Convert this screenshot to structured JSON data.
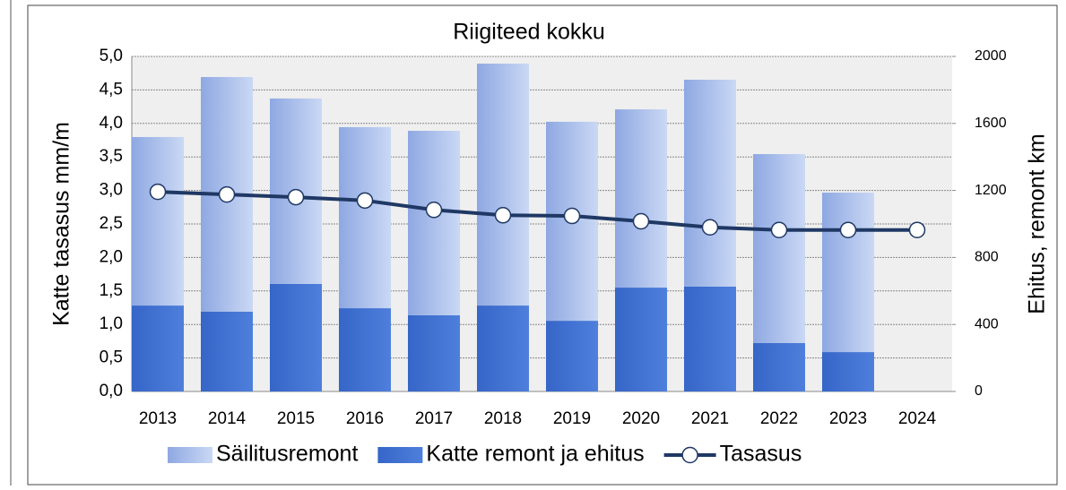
{
  "chart_data": {
    "type": "bar",
    "title": "Riigiteed kokku",
    "ylabel": "Katte tasasus mm/m",
    "y2label": "Ehitus, remont km",
    "categories": [
      "2013",
      "2014",
      "2015",
      "2016",
      "2017",
      "2018",
      "2019",
      "2020",
      "2021",
      "2022",
      "2023",
      "2024"
    ],
    "stacked": true,
    "series": [
      {
        "name": "Säilitusremont",
        "type": "bar",
        "axis": "y2",
        "color": "#a9bfea",
        "values": [
          1006,
          1401,
          1107,
          1081,
          1101,
          1444,
          1188,
          1064,
          1235,
          1128,
          952,
          null
        ]
      },
      {
        "name": "Katte remont ja ehitus",
        "type": "bar",
        "axis": "y2",
        "color": "#3f6fd1",
        "values": [
          513,
          476,
          642,
          497,
          455,
          513,
          422,
          620,
          626,
          289,
          235,
          null
        ]
      },
      {
        "name": "Tasasus",
        "type": "line",
        "axis": "y",
        "color": "#1f3864",
        "values": [
          2.98,
          2.94,
          2.9,
          2.85,
          2.71,
          2.63,
          2.62,
          2.54,
          2.45,
          2.41,
          2.41,
          2.41
        ]
      }
    ],
    "ylim": [
      0,
      5
    ],
    "yticks": [
      {
        "value": 0,
        "label": "0,0"
      },
      {
        "value": 0.5,
        "label": "0,5"
      },
      {
        "value": 1,
        "label": "1,0"
      },
      {
        "value": 1.5,
        "label": "1,5"
      },
      {
        "value": 2,
        "label": "2,0"
      },
      {
        "value": 2.5,
        "label": "2,5"
      },
      {
        "value": 3,
        "label": "3,0"
      },
      {
        "value": 3.5,
        "label": "3,5"
      },
      {
        "value": 4,
        "label": "4,0"
      },
      {
        "value": 4.5,
        "label": "4,5"
      },
      {
        "value": 5,
        "label": "5,0"
      }
    ],
    "y2lim": [
      0,
      2000
    ],
    "y2ticks": [
      0,
      400,
      800,
      1200,
      1600,
      2000
    ],
    "grid": true,
    "legend": "bottom"
  }
}
